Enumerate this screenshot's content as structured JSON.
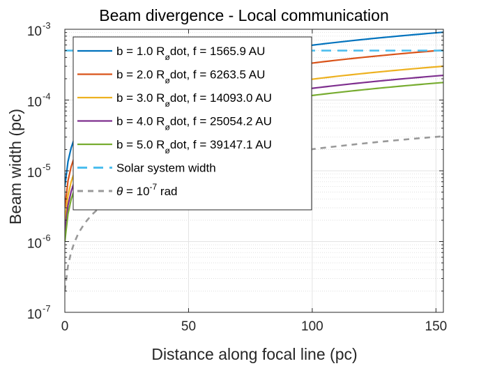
{
  "chart_data": {
    "type": "line",
    "title": "Beam divergence - Local communication",
    "xlabel": "Distance along focal line (pc)",
    "ylabel": "Beam width (pc)",
    "xlim": [
      0,
      153
    ],
    "ylim": [
      1e-07,
      0.001
    ],
    "yscale": "log",
    "grid": true,
    "x_ticks": [
      "0",
      "50",
      "100",
      "150"
    ],
    "y_ticks": [
      {
        "base": "10",
        "exp": "-7"
      },
      {
        "base": "10",
        "exp": "-6"
      },
      {
        "base": "10",
        "exp": "-5"
      },
      {
        "base": "10",
        "exp": "-4"
      },
      {
        "base": "10",
        "exp": "-3"
      }
    ],
    "legend_position": "top-left",
    "series": [
      {
        "name": "b = 1.0 R_ødot, f = 1565.9 AU",
        "parts": {
          "pre": "b = 1.0 R",
          "sub": "ø",
          "post": "dot, f = 1565.9 AU"
        },
        "color": "#0072BD",
        "dash": "solid",
        "x": [
          0,
          153
        ],
        "y0": 6e-06,
        "slope": 5.9e-06
      },
      {
        "name": "b = 2.0 R_ødot, f = 6263.5 AU",
        "parts": {
          "pre": "b = 2.0 R",
          "sub": "ø",
          "post": "dot, f = 6263.5 AU"
        },
        "color": "#D95319",
        "dash": "solid",
        "x": [
          0,
          153
        ],
        "y0": 3e-06,
        "slope": 3.3e-06
      },
      {
        "name": "b = 3.0 R_ødot, f = 14093.0 AU",
        "parts": {
          "pre": "b = 3.0 R",
          "sub": "ø",
          "post": "dot, f = 14093.0 AU"
        },
        "color": "#EDB120",
        "dash": "solid",
        "x": [
          0,
          153
        ],
        "y0": 2e-06,
        "slope": 1.95e-06
      },
      {
        "name": "b = 4.0 R_ødot, f = 25054.2 AU",
        "parts": {
          "pre": "b = 4.0 R",
          "sub": "ø",
          "post": "dot, f = 25054.2 AU"
        },
        "color": "#7E2F8E",
        "dash": "solid",
        "x": [
          0,
          153
        ],
        "y0": 1.4e-06,
        "slope": 1.45e-06
      },
      {
        "name": "b = 5.0 R_ødot, f = 39147.1 AU",
        "parts": {
          "pre": "b = 5.0 R",
          "sub": "ø",
          "post": "dot, f = 39147.1 AU"
        },
        "color": "#77AC30",
        "dash": "solid",
        "x": [
          0,
          153
        ],
        "y0": 1e-06,
        "slope": 1.15e-06
      },
      {
        "name": "Solar system width",
        "parts": {
          "pre": "Solar system width",
          "sub": "",
          "post": ""
        },
        "color": "#4DBEEE",
        "dash": "long",
        "x": [
          0,
          153
        ],
        "y0": 0.0005,
        "slope": 0
      },
      {
        "name": "θ = 10^-7 rad",
        "parts": {
          "pre": "θ",
          "sub": "",
          "post": " = 10",
          "sup": "-7",
          "tail": " rad"
        },
        "color": "#999999",
        "dash": "short",
        "x": [
          0,
          153
        ],
        "y0": 2e-07,
        "slope": 2e-07
      }
    ]
  }
}
